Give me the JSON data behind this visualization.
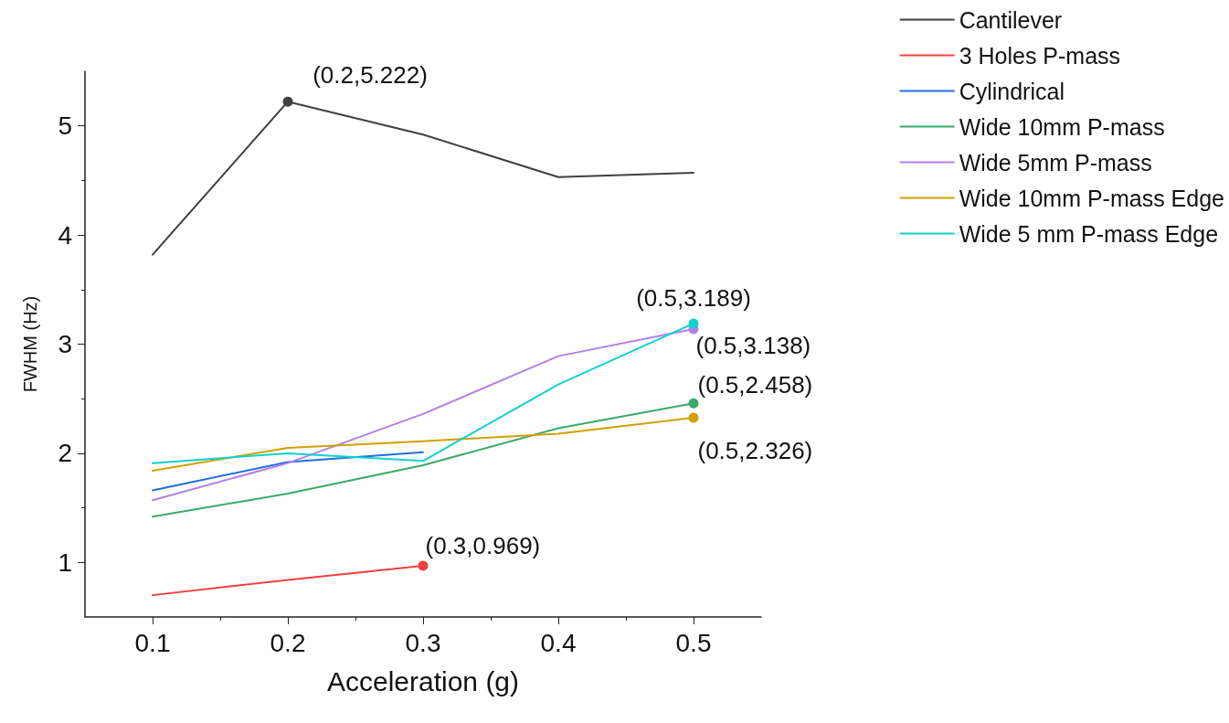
{
  "chart_data": {
    "type": "line",
    "xlabel": "Acceleration (g)",
    "ylabel": "FWHM (Hz)",
    "x": [
      0.1,
      0.2,
      0.3,
      0.4,
      0.5
    ],
    "xlim": [
      0.05,
      0.55
    ],
    "xticks": [
      0.1,
      0.2,
      0.3,
      0.4,
      0.5
    ],
    "ylim": [
      0.5,
      5.5
    ],
    "yticks": [
      1,
      2,
      3,
      4,
      5
    ],
    "grid": false,
    "legend": "top right",
    "line_style": "solid",
    "series": [
      {
        "name": "Cantilever",
        "color": "#404040",
        "values": [
          3.82,
          5.222,
          4.92,
          4.53,
          4.57
        ],
        "value_labels": [
          null,
          "(0.2,5.222)",
          null,
          null,
          null
        ]
      },
      {
        "name": "3 Holes P-mass",
        "color": "#f04040",
        "values": [
          0.7,
          0.84,
          0.969,
          null,
          null
        ],
        "value_labels": [
          null,
          null,
          "(0.3,0.969)",
          null,
          null
        ]
      },
      {
        "name": "Cylindrical",
        "color": "#1f6fe0",
        "values": [
          1.66,
          1.92,
          2.01,
          null,
          null
        ]
      },
      {
        "name": "Wide 10mm P-mass",
        "color": "#3aaa6a",
        "values": [
          1.42,
          1.63,
          1.89,
          2.23,
          2.458
        ],
        "value_labels": [
          null,
          null,
          null,
          null,
          "(0.5,2.458)"
        ]
      },
      {
        "name": "Wide 5mm P-mass",
        "color": "#b080e8",
        "values": [
          1.57,
          1.91,
          2.36,
          2.89,
          3.138
        ],
        "value_labels": [
          null,
          null,
          null,
          null,
          "(0.5,3.138)"
        ]
      },
      {
        "name": "Wide 10mm P-mass Edge",
        "color": "#d0a000",
        "values": [
          1.84,
          2.05,
          2.11,
          2.18,
          2.326
        ],
        "value_labels": [
          null,
          null,
          null,
          null,
          "(0.5,2.326)"
        ]
      },
      {
        "name": "Wide 5 mm P-mass Edge",
        "color": "#10d0d0",
        "values": [
          1.91,
          2.0,
          1.93,
          2.63,
          3.189
        ],
        "value_labels": [
          null,
          null,
          null,
          null,
          "(0.5,3.189)"
        ]
      }
    ]
  }
}
